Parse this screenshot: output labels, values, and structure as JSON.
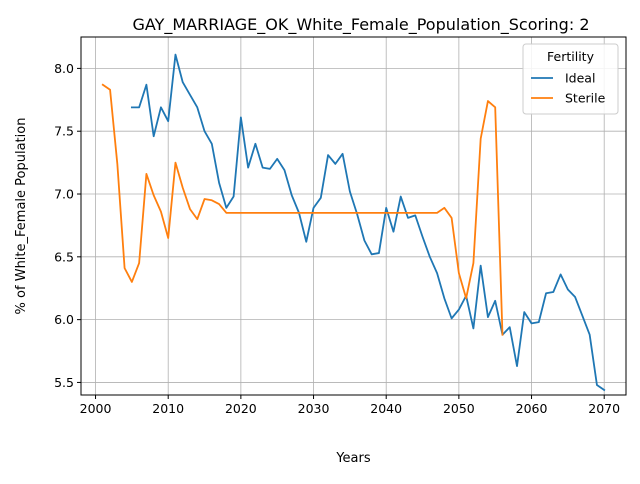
{
  "chart_data": {
    "type": "line",
    "title": "GAY_MARRIAGE_OK_White_Female_Population_Scoring: 2",
    "xlabel": "Years",
    "ylabel": "% of White_Female Population",
    "xlim": [
      1998,
      2073
    ],
    "ylim": [
      5.4,
      8.25
    ],
    "xticks": [
      2000,
      2010,
      2020,
      2030,
      2040,
      2050,
      2060,
      2070
    ],
    "yticks": [
      5.5,
      6.0,
      6.5,
      7.0,
      7.5,
      8.0
    ],
    "ytick_labels": [
      "5.5",
      "6.0",
      "6.5",
      "7.0",
      "7.5",
      "8.0"
    ],
    "grid": true,
    "legend": {
      "title": "Fertility",
      "position": "top-right"
    },
    "series": [
      {
        "name": "Ideal",
        "color": "#1f77b4",
        "x": [
          2005,
          2006,
          2007,
          2008,
          2009,
          2010,
          2011,
          2012,
          2013,
          2014,
          2015,
          2016,
          2017,
          2018,
          2019,
          2020,
          2021,
          2022,
          2023,
          2024,
          2025,
          2026,
          2027,
          2028,
          2029,
          2030,
          2031,
          2032,
          2033,
          2034,
          2035,
          2036,
          2037,
          2038,
          2039,
          2040,
          2041,
          2042,
          2043,
          2044,
          2045,
          2046,
          2047,
          2048,
          2049,
          2050,
          2051,
          2052,
          2053,
          2054,
          2055,
          2056,
          2057,
          2058,
          2059,
          2060,
          2061,
          2062,
          2063,
          2064,
          2065,
          2066,
          2067,
          2068,
          2069,
          2070
        ],
        "y": [
          7.69,
          7.69,
          7.87,
          7.46,
          7.69,
          7.58,
          8.11,
          7.89,
          7.79,
          7.69,
          7.5,
          7.4,
          7.09,
          6.89,
          6.98,
          7.61,
          7.21,
          7.4,
          7.21,
          7.2,
          7.28,
          7.19,
          6.99,
          6.85,
          6.62,
          6.89,
          6.97,
          7.31,
          7.24,
          7.32,
          7.02,
          6.84,
          6.63,
          6.52,
          6.53,
          6.89,
          6.7,
          6.98,
          6.81,
          6.83,
          6.66,
          6.5,
          6.37,
          6.17,
          6.01,
          6.08,
          6.19,
          5.93,
          6.43,
          6.02,
          6.15,
          5.88,
          5.94,
          5.63,
          6.06,
          5.97,
          5.98,
          6.21,
          6.22,
          6.36,
          6.24,
          6.18,
          6.03,
          5.88,
          5.48,
          5.44
        ]
      },
      {
        "name": "Sterile",
        "color": "#ff7f0e",
        "x": [
          2001,
          2002,
          2003,
          2004,
          2005,
          2006,
          2007,
          2008,
          2009,
          2010,
          2011,
          2012,
          2013,
          2014,
          2015,
          2016,
          2017,
          2018,
          2019,
          2020,
          2021,
          2022,
          2023,
          2024,
          2025,
          2026,
          2027,
          2028,
          2029,
          2030,
          2031,
          2032,
          2033,
          2034,
          2035,
          2036,
          2037,
          2038,
          2039,
          2040,
          2041,
          2042,
          2043,
          2044,
          2045,
          2046,
          2047,
          2048,
          2049,
          2050,
          2051,
          2052,
          2053,
          2054,
          2055,
          2056
        ],
        "y": [
          7.87,
          7.83,
          7.24,
          6.41,
          6.3,
          6.45,
          7.16,
          6.99,
          6.86,
          6.65,
          7.25,
          7.05,
          6.88,
          6.8,
          6.96,
          6.95,
          6.92,
          6.85,
          6.85,
          6.85,
          6.85,
          6.85,
          6.85,
          6.85,
          6.85,
          6.85,
          6.85,
          6.85,
          6.85,
          6.85,
          6.85,
          6.85,
          6.85,
          6.85,
          6.85,
          6.85,
          6.85,
          6.85,
          6.85,
          6.85,
          6.85,
          6.85,
          6.85,
          6.85,
          6.85,
          6.85,
          6.85,
          6.89,
          6.81,
          6.37,
          6.17,
          6.45,
          7.44,
          7.74,
          7.69,
          5.88
        ]
      }
    ]
  }
}
